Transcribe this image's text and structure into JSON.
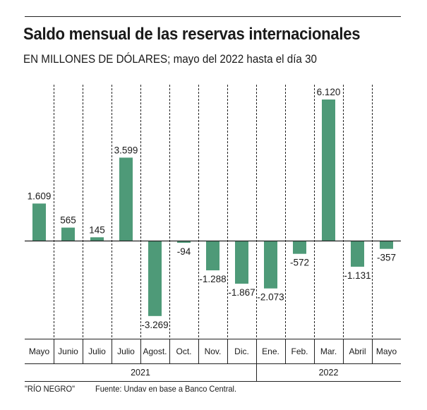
{
  "header": {
    "title": "Saldo mensual de las reservas internacionales",
    "subtitle": "EN MILLONES DE DÓLARES; mayo del 2022 hasta el día 30"
  },
  "footer": {
    "credit": "\"RÍO NEGRO\"",
    "source": "Fuente: Undav en base a Banco Central."
  },
  "chart_data": {
    "type": "bar",
    "title": "Saldo mensual de las reservas internacionales",
    "subtitle": "EN MILLONES DE DÓLARES; mayo del 2022 hasta el día 30",
    "xlabel": "",
    "ylabel": "",
    "categories": [
      "Mayo",
      "Junio",
      "Julio",
      "Julio",
      "Agost.",
      "Oct.",
      "Nov.",
      "Dic.",
      "Ene.",
      "Feb.",
      "Mar.",
      "Abril",
      "Mayo"
    ],
    "values": [
      1609,
      565,
      145,
      3599,
      -3269,
      -94,
      -1288,
      -1867,
      -2073,
      -572,
      6120,
      -1131,
      -357
    ],
    "value_labels": [
      "1.609",
      "565",
      "145",
      "3.599",
      "-3.269",
      "-94",
      "-1.288",
      "-1.867",
      "-2.073",
      "-572",
      "6.120",
      "-1.131",
      "-357"
    ],
    "year_groups": [
      {
        "label": "2021",
        "start": 0,
        "count": 8
      },
      {
        "label": "2022",
        "start": 8,
        "count": 5
      }
    ],
    "ylim": [
      -6120,
      6120
    ],
    "grid": false,
    "legend": "none",
    "bar_color": "#4e9a78"
  }
}
